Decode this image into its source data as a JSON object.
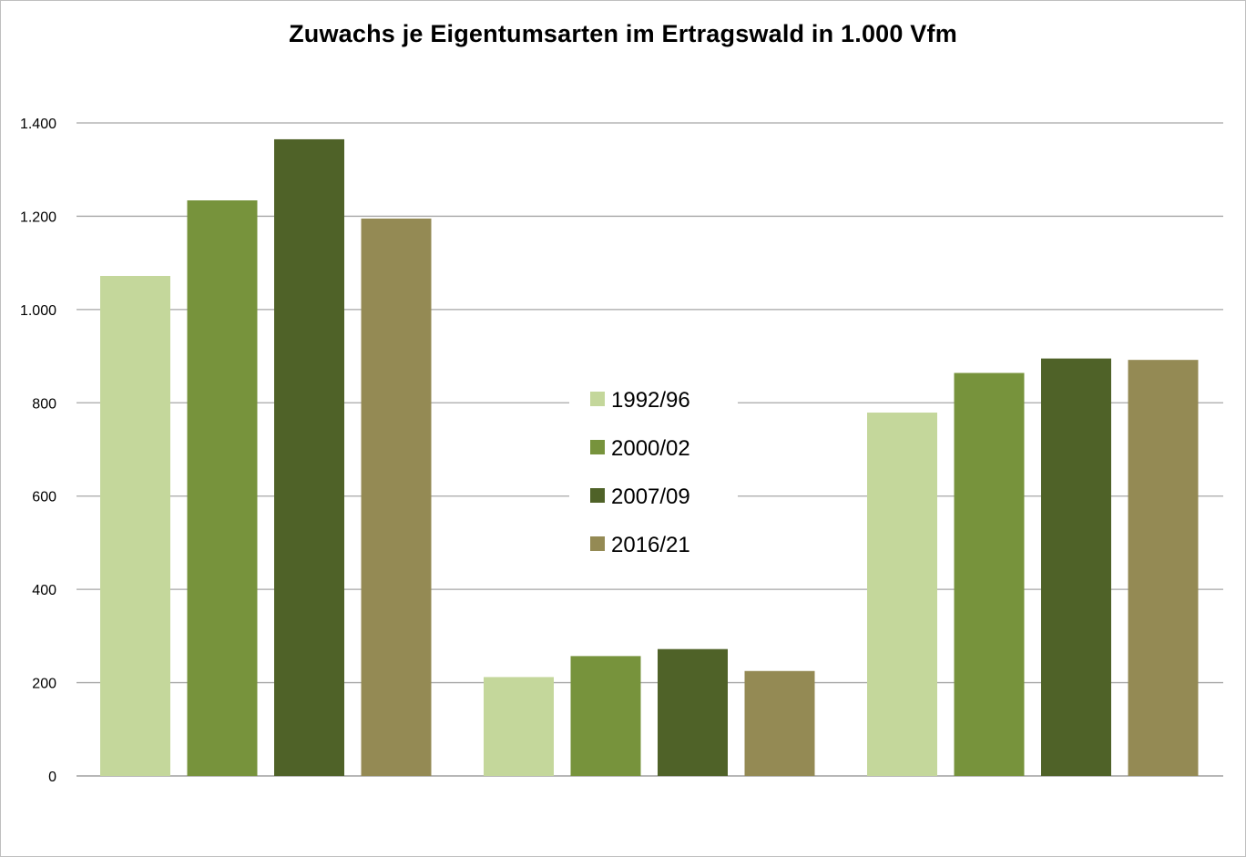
{
  "chart_data": {
    "type": "bar",
    "title": "Zuwachs je Eigentumsarten im Ertragswald in 1.000 Vfm",
    "xlabel": "",
    "ylabel": "",
    "categories": [
      "",
      "",
      ""
    ],
    "ylim": [
      0,
      1400
    ],
    "yticks": [
      0,
      200,
      400,
      600,
      800,
      1000,
      1200,
      1400
    ],
    "ytick_labels": [
      "0",
      "200",
      "400",
      "600",
      "800",
      "1.000",
      "1.200",
      "1.400"
    ],
    "grid": true,
    "legend_position": "center",
    "series": [
      {
        "name": "1992/96",
        "color": "#c4d79b",
        "values": [
          1072,
          212,
          779
        ]
      },
      {
        "name": "2000/02",
        "color": "#77933c",
        "values": [
          1234,
          257,
          864
        ]
      },
      {
        "name": "2007/09",
        "color": "#4f6228",
        "values": [
          1365,
          272,
          895
        ]
      },
      {
        "name": "2016/21",
        "color": "#948a54",
        "values": [
          1195,
          225,
          892
        ]
      }
    ]
  }
}
